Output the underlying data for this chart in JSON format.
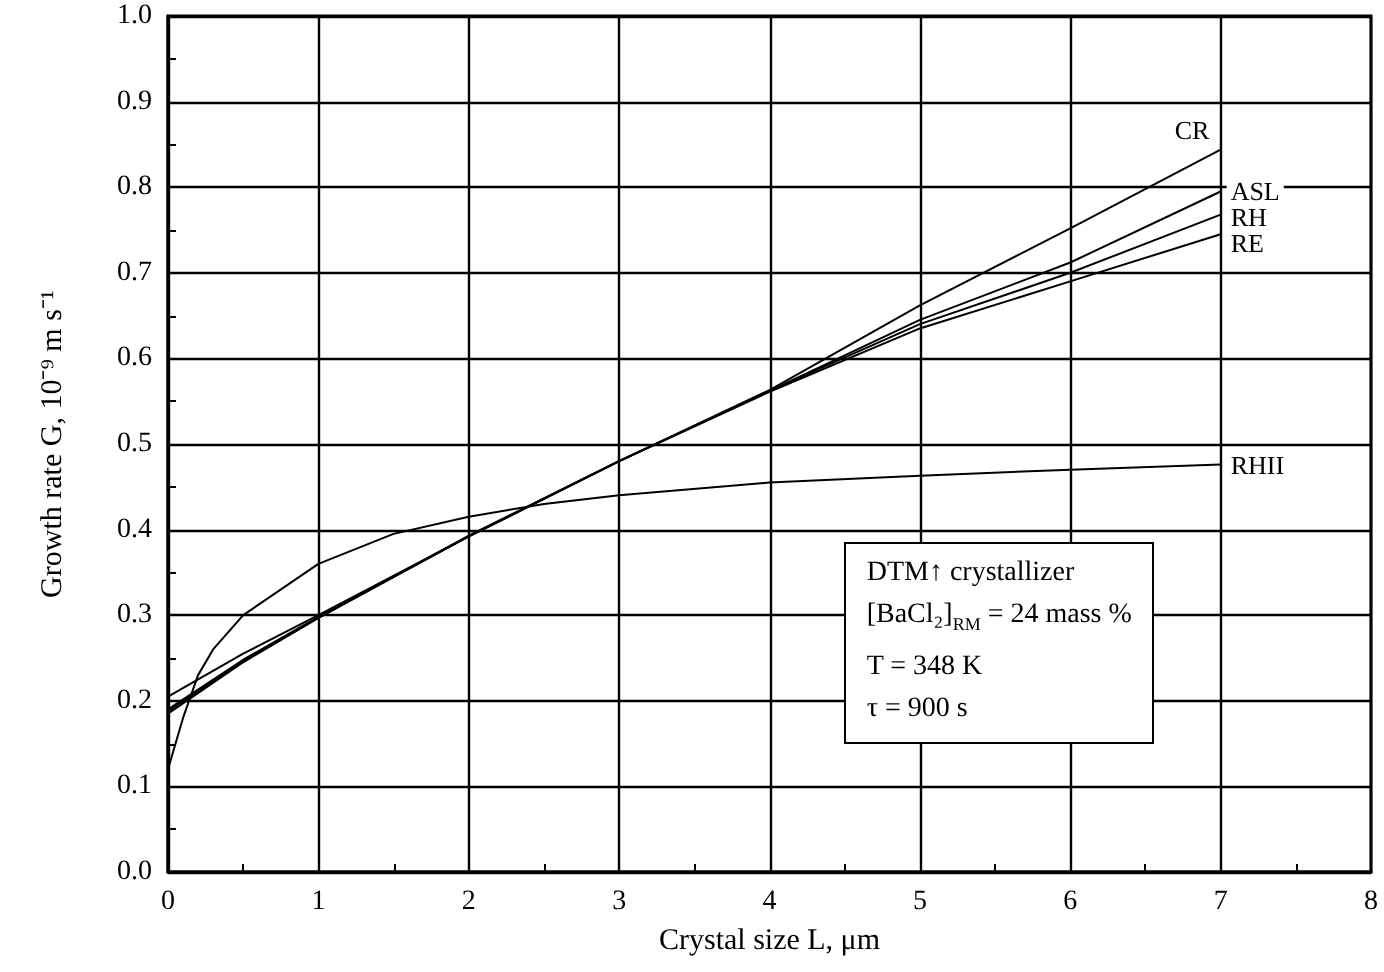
{
  "chart_data": {
    "type": "line",
    "xlabel": "Crystal size L, μm",
    "ylabel": "Growth rate G, 10⁻⁹ m s⁻¹",
    "xlim": [
      0,
      8
    ],
    "xticks": [
      0,
      1,
      2,
      3,
      4,
      5,
      6,
      7,
      8
    ],
    "ylim": [
      0,
      1.0
    ],
    "yticks": [
      {
        "value": 0,
        "label": "0.0"
      },
      {
        "value": 0.1,
        "label": "0.1"
      },
      {
        "value": 0.2,
        "label": "0.2"
      },
      {
        "value": 0.3,
        "label": "0.3"
      },
      {
        "value": 0.4,
        "label": "0.4"
      },
      {
        "value": 0.5,
        "label": "0.5"
      },
      {
        "value": 0.6,
        "label": "0.6"
      },
      {
        "value": 0.7,
        "label": "0.7"
      },
      {
        "value": 0.8,
        "label": "0.8"
      },
      {
        "value": 0.9,
        "label": "0.9"
      },
      {
        "value": 1.0,
        "label": "1.0"
      }
    ],
    "grid": true,
    "legend": false,
    "marker": "none",
    "line_style": "solid",
    "series": [
      {
        "name": "CR",
        "color": "#000000",
        "x": [
          0,
          0.5,
          1,
          2,
          3,
          4,
          5,
          6,
          7
        ],
        "values": [
          0.185,
          0.245,
          0.297,
          0.393,
          0.48,
          0.563,
          0.662,
          0.752,
          0.844
        ]
      },
      {
        "name": "ASL",
        "color": "#000000",
        "x": [
          0,
          0.5,
          1,
          2,
          3,
          4,
          5,
          6,
          7
        ],
        "values": [
          0.205,
          0.255,
          0.3,
          0.392,
          0.48,
          0.562,
          0.645,
          0.712,
          0.795
        ]
      },
      {
        "name": "RH",
        "color": "#000000",
        "x": [
          0,
          0.5,
          1,
          2,
          3,
          4,
          5,
          6,
          7
        ],
        "values": [
          0.19,
          0.248,
          0.298,
          0.392,
          0.48,
          0.562,
          0.64,
          0.7,
          0.768
        ]
      },
      {
        "name": "RE",
        "color": "#000000",
        "x": [
          0,
          0.5,
          1,
          2,
          3,
          4,
          5,
          6,
          7
        ],
        "values": [
          0.188,
          0.246,
          0.297,
          0.392,
          0.48,
          0.561,
          0.635,
          0.69,
          0.745
        ]
      },
      {
        "name": "RHII",
        "color": "#000000",
        "x": [
          0,
          0.1,
          0.2,
          0.3,
          0.5,
          1,
          1.5,
          2,
          2.5,
          3,
          4,
          5,
          6,
          7
        ],
        "values": [
          0.12,
          0.18,
          0.23,
          0.26,
          0.3,
          0.36,
          0.395,
          0.415,
          0.43,
          0.44,
          0.455,
          0.463,
          0.47,
          0.476
        ]
      }
    ],
    "annotations": [
      "DTM↑ crystallizer",
      "[BaCl₂]$_{RM}$ = 24 mass %",
      "T = 348 K",
      "τ = 900 s"
    ]
  }
}
